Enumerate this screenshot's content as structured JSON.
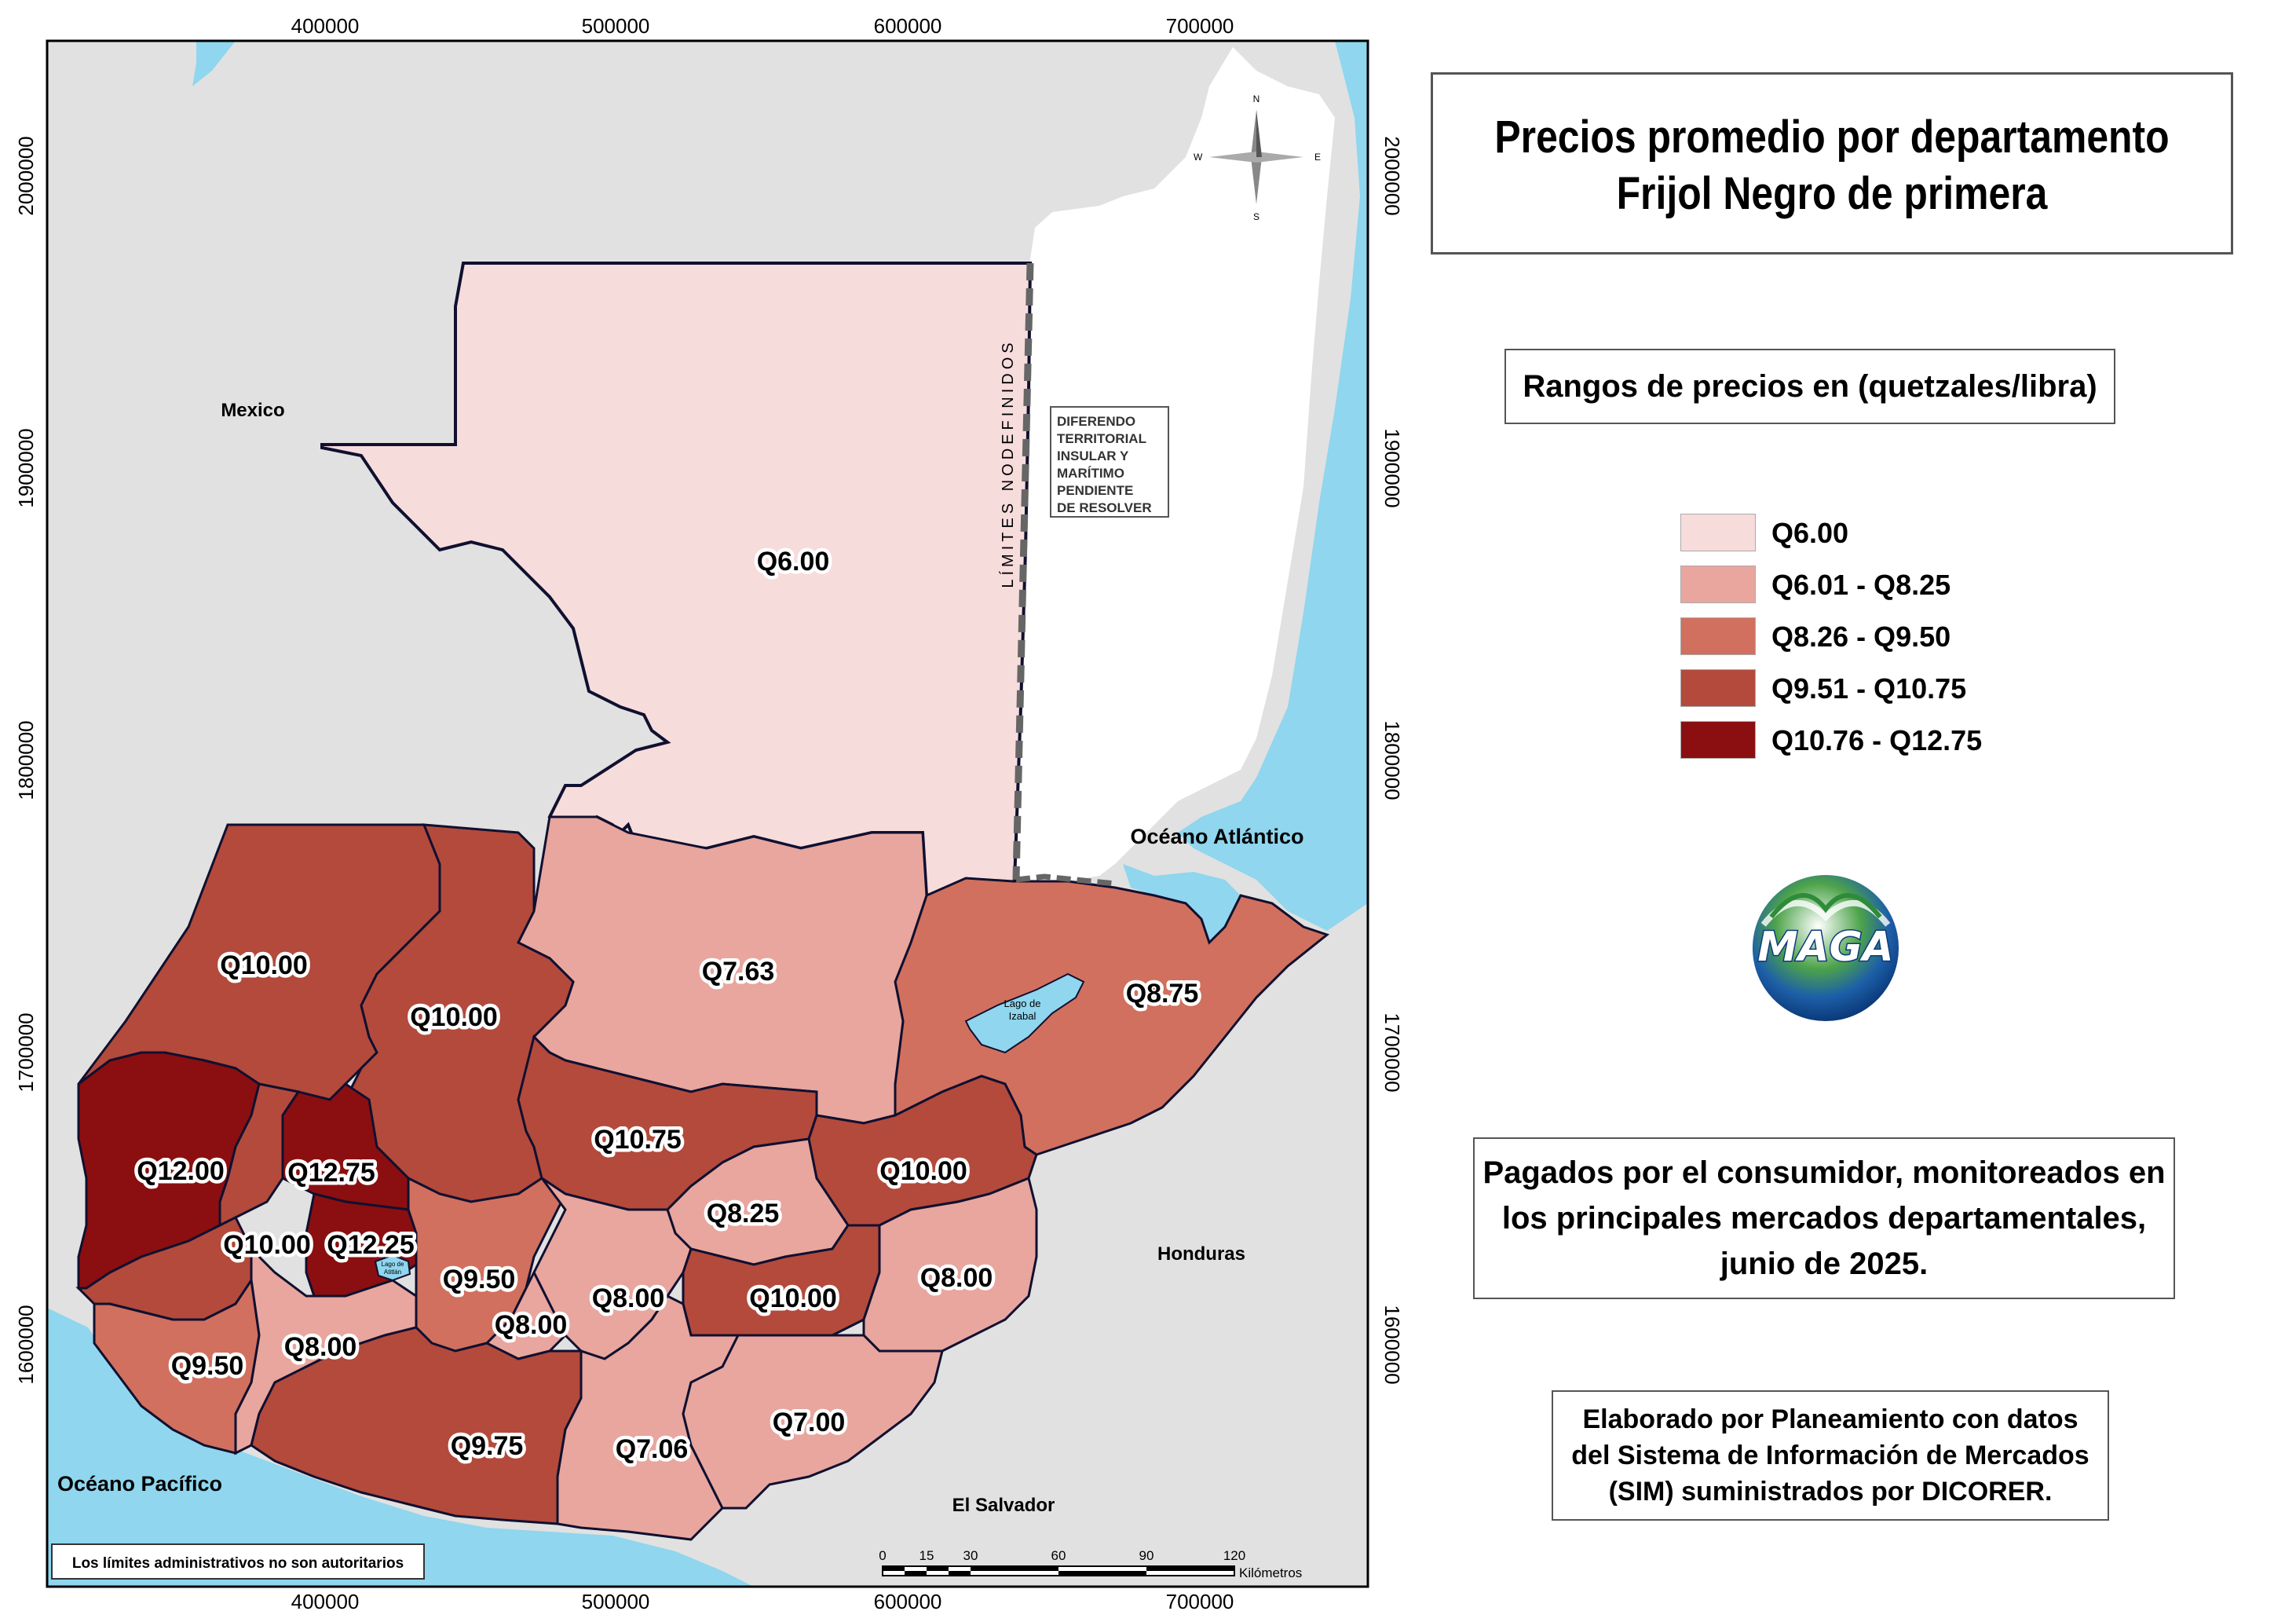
{
  "title": {
    "line1": "Precios promedio por departamento",
    "line2": "Frijol Negro de primera"
  },
  "legend": {
    "heading": "Rangos de precios en (quetzales/libra)",
    "classes": [
      {
        "label": "Q6.00",
        "color": "#f7dcdc"
      },
      {
        "label": "Q6.01 - Q8.25",
        "color": "#e8a69e"
      },
      {
        "label": "Q8.26 - Q9.50",
        "color": "#d1705e"
      },
      {
        "label": "Q9.51 - Q10.75",
        "color": "#b34a3c"
      },
      {
        "label": "Q10.76 - Q12.75",
        "color": "#8b0f10"
      }
    ]
  },
  "note": {
    "line1": "Pagados por el consumidor, monitoreados en",
    "line2": "los principales mercados departamentales,",
    "line3": "junio de 2025."
  },
  "credit": {
    "line1": "Elaborado por Planeamiento con datos",
    "line2": "del Sistema de Información de Mercados",
    "line3": "(SIM) suministrados por DICORER."
  },
  "logo_text": "MAGA",
  "map": {
    "axis_x": [
      "400000",
      "500000",
      "600000",
      "700000"
    ],
    "axis_y": [
      "2000000",
      "1900000",
      "1800000",
      "1700000",
      "1600000"
    ],
    "countries": {
      "mexico": "Mexico",
      "honduras": "Honduras",
      "el_salvador": "El Salvador"
    },
    "oceans": {
      "atlantic": "Océano Atlántico",
      "pacific": "Océano Pacífico"
    },
    "undefined_limits": "LÍMITES NODEFINIDOS",
    "dispute": [
      "DIFERENDO",
      "TERRITORIAL",
      "INSULAR Y",
      "MARÍTIMO",
      "PENDIENTE",
      "DE RESOLVER"
    ],
    "lake_izabal": [
      "Lago de",
      "Izabal"
    ],
    "lake_atitlan": [
      "Lago de",
      "Atitlán"
    ],
    "disclaimer": "Los límites administrativos no son autoritarios",
    "scale": {
      "ticks": [
        "0",
        "15",
        "30",
        "60",
        "90",
        "120"
      ],
      "unit": "Kilómetros"
    },
    "compass": {
      "n": "N",
      "s": "S",
      "e": "E",
      "w": "W"
    }
  },
  "departments": [
    {
      "price": "Q6.00",
      "class": 0
    },
    {
      "price": "Q7.63",
      "class": 1
    },
    {
      "price": "Q8.75",
      "class": 2
    },
    {
      "price": "Q10.00",
      "class": 3
    },
    {
      "price": "Q10.00",
      "class": 3
    },
    {
      "price": "Q12.00",
      "class": 4
    },
    {
      "price": "Q12.75",
      "class": 4
    },
    {
      "price": "Q10.75",
      "class": 3
    },
    {
      "price": "Q10.00",
      "class": 3
    },
    {
      "price": "Q8.25",
      "class": 1
    },
    {
      "price": "Q10.00",
      "class": 3
    },
    {
      "price": "Q12.25",
      "class": 4
    },
    {
      "price": "Q9.50",
      "class": 2
    },
    {
      "price": "Q8.00",
      "class": 1
    },
    {
      "price": "Q8.00",
      "class": 1
    },
    {
      "price": "Q10.00",
      "class": 3
    },
    {
      "price": "Q8.00",
      "class": 1
    },
    {
      "price": "Q9.50",
      "class": 2
    },
    {
      "price": "Q8.00",
      "class": 1
    },
    {
      "price": "Q9.75",
      "class": 3
    },
    {
      "price": "Q7.06",
      "class": 1
    },
    {
      "price": "Q7.00",
      "class": 1
    }
  ]
}
